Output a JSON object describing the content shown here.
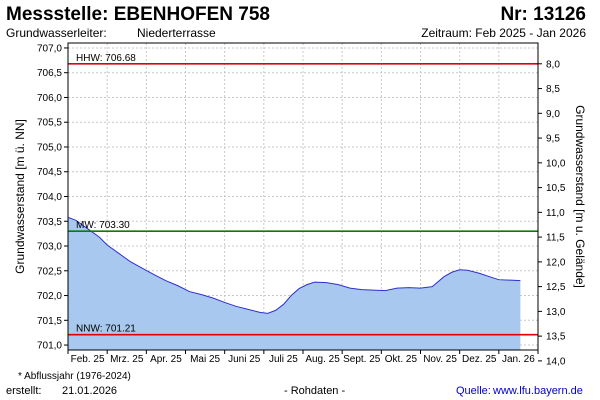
{
  "header": {
    "title": "Messstelle: EBENHOFEN 758",
    "number": "Nr: 13126",
    "aquifer_label": "Grundwasserleiter:",
    "aquifer_value": "Niederterrasse",
    "period": "Zeitraum: Feb 2025 - Jan 2026"
  },
  "footer": {
    "footnote": "* Abflussjahr (1976-2024)",
    "created_label": "erstellt:",
    "created_date": "21.01.2026",
    "data_status": "- Rohdaten -",
    "source_label": "Quelle:",
    "source_url": "www.lfu.bayern.de"
  },
  "colors": {
    "area_fill": "#a8c8f0",
    "line": "#3030d0",
    "hhw_line": "#e00000",
    "nnw_line": "#e00000",
    "mw_line": "#008000",
    "grid": "#c8c8c8"
  },
  "chart_data": {
    "type": "area",
    "y_left_label": "Grundwasserstand [m ü. NN]",
    "y_right_label": "Grundwasserstand [m u. Gelände]",
    "y_left_range": [
      700.9,
      707.1
    ],
    "y_left_ticks": [
      "701,0",
      "701,5",
      "702,0",
      "702,5",
      "703,0",
      "703,5",
      "704,0",
      "704,5",
      "705,0",
      "705,5",
      "706,0",
      "706,5",
      "707,0"
    ],
    "y_left_tick_values": [
      701.0,
      701.5,
      702.0,
      702.5,
      703.0,
      703.5,
      704.0,
      704.5,
      705.0,
      705.5,
      706.0,
      706.5,
      707.0
    ],
    "y_right_ticks": [
      "8,0",
      "8,5",
      "9,0",
      "9,5",
      "10,0",
      "10,5",
      "11,0",
      "11,5",
      "12,0",
      "12,5",
      "13,0",
      "13,5",
      "14,0"
    ],
    "y_right_tick_values": [
      8.0,
      8.5,
      9.0,
      9.5,
      10.0,
      10.5,
      11.0,
      11.5,
      12.0,
      12.5,
      13.0,
      13.5,
      14.0
    ],
    "ground_level_m_nn": 714.68,
    "x_range": [
      0,
      12
    ],
    "x_tick_labels": [
      "Feb. 25",
      "Mrz. 25",
      "Apr. 25",
      "Mai 25",
      "Juni 25",
      "Juli 25",
      "Aug. 25",
      "Sept. 25",
      "Okt. 25",
      "Nov. 25",
      "Dez. 25",
      "Jan. 26"
    ],
    "reference_lines": [
      {
        "label": "HHW: 706.68",
        "value": 706.68,
        "type": "hhw"
      },
      {
        "label": "MW: 703.30",
        "value": 703.3,
        "type": "mw"
      },
      {
        "label": "NNW: 701.21",
        "value": 701.21,
        "type": "nnw"
      }
    ],
    "series": [
      {
        "x": [
          0.0,
          0.2,
          0.5,
          0.8,
          1.0,
          1.3,
          1.6,
          1.9,
          2.2,
          2.5,
          2.8,
          3.1,
          3.4,
          3.7,
          4.0,
          4.3,
          4.6,
          4.9,
          5.1,
          5.3,
          5.5,
          5.7,
          5.9,
          6.1,
          6.3,
          6.6,
          6.9,
          7.2,
          7.5,
          7.8,
          8.1,
          8.4,
          8.7,
          9.0,
          9.3,
          9.6,
          9.8,
          10.0,
          10.2,
          10.5,
          10.8,
          11.0,
          11.3,
          11.55
        ],
        "y": [
          703.58,
          703.52,
          703.35,
          703.18,
          703.02,
          702.85,
          702.68,
          702.55,
          702.42,
          702.3,
          702.2,
          702.08,
          702.02,
          701.95,
          701.86,
          701.78,
          701.72,
          701.66,
          701.64,
          701.7,
          701.82,
          702.0,
          702.14,
          702.22,
          702.27,
          702.26,
          702.22,
          702.15,
          702.12,
          702.11,
          702.1,
          702.15,
          702.16,
          702.15,
          702.18,
          702.38,
          702.47,
          702.52,
          702.51,
          702.45,
          702.37,
          702.32,
          702.31,
          702.3
        ]
      }
    ]
  }
}
